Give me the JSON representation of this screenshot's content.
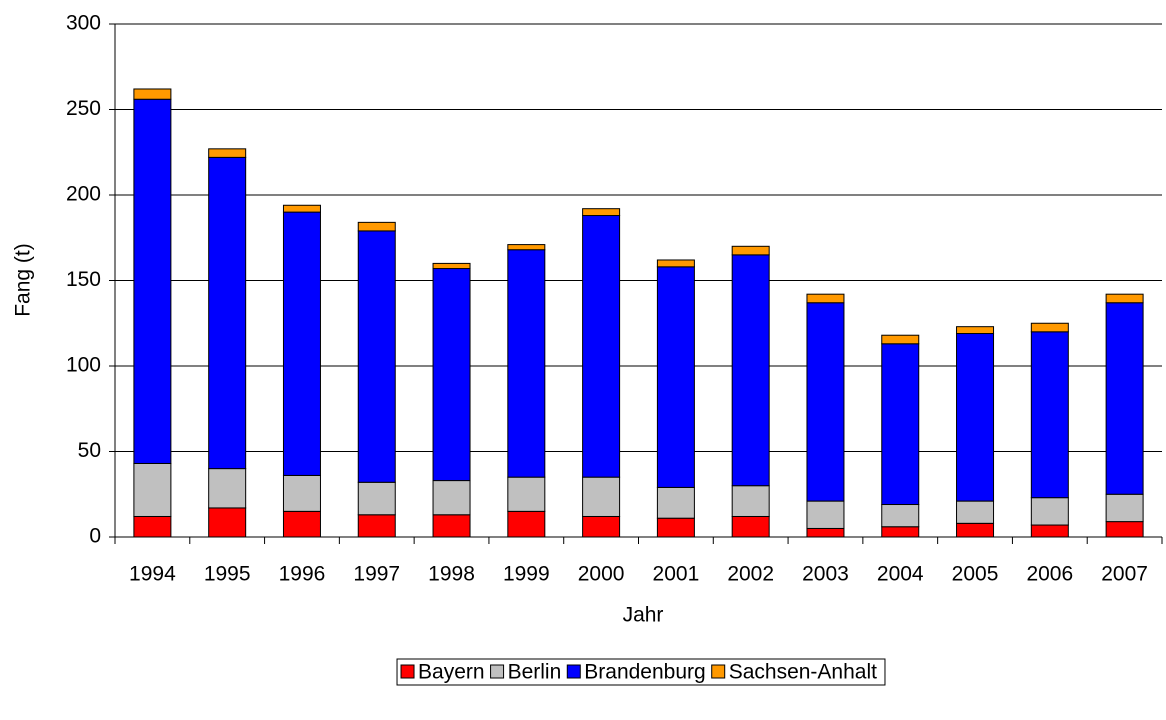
{
  "chart_data": {
    "type": "stacked_bar",
    "x_label": "Jahr",
    "y_label": "Fang (t)",
    "categories": [
      "1994",
      "1995",
      "1996",
      "1997",
      "1998",
      "1999",
      "2000",
      "2001",
      "2002",
      "2003",
      "2004",
      "2005",
      "2006",
      "2007"
    ],
    "series": [
      {
        "name": "Bayern",
        "color": "#ff0000",
        "values": [
          12,
          17,
          15,
          13,
          13,
          15,
          12,
          11,
          12,
          5,
          6,
          8,
          7,
          9
        ]
      },
      {
        "name": "Berlin",
        "color": "#c0c0c0",
        "values": [
          31,
          23,
          21,
          19,
          20,
          20,
          23,
          18,
          18,
          16,
          13,
          13,
          16,
          16
        ]
      },
      {
        "name": "Brandenburg",
        "color": "#0000ff",
        "values": [
          213,
          182,
          154,
          147,
          124,
          133,
          153,
          129,
          135,
          116,
          94,
          98,
          97,
          112
        ]
      },
      {
        "name": "Sachsen-Anhalt",
        "color": "#ff9900",
        "values": [
          6,
          5,
          4,
          5,
          3,
          3,
          4,
          4,
          5,
          5,
          5,
          4,
          5,
          5
        ]
      }
    ],
    "ylim": [
      0,
      300
    ],
    "yticks": [
      0,
      50,
      100,
      150,
      200,
      250,
      300
    ],
    "grid": true,
    "legend": "bottom"
  }
}
